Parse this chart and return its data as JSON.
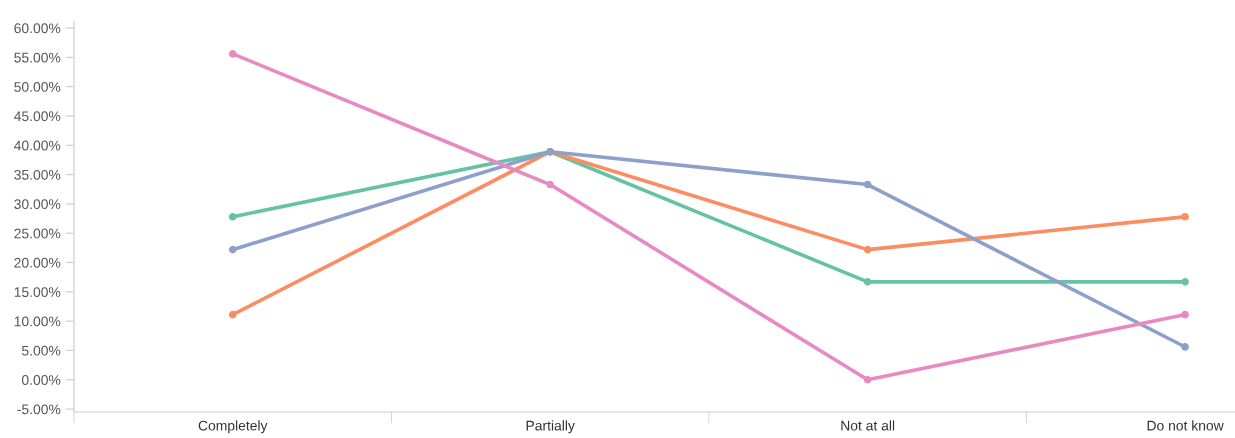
{
  "chart_data": {
    "type": "line",
    "categories": [
      "Completely",
      "Partially",
      "Not at all",
      "Do not know"
    ],
    "series": [
      {
        "color": "#66c2a5",
        "values": [
          27.8,
          38.9,
          16.7,
          16.7
        ]
      },
      {
        "color": "#fc8d62",
        "values": [
          11.1,
          38.9,
          22.2,
          27.8
        ]
      },
      {
        "color": "#8da0cb",
        "values": [
          22.2,
          38.9,
          33.3,
          5.6
        ]
      },
      {
        "color": "#e78ac3",
        "values": [
          55.6,
          33.3,
          0.0,
          11.1
        ]
      }
    ],
    "ylim": [
      -5.5,
      61.2
    ],
    "yticks": [
      {
        "value": -5,
        "label": "-5.00%"
      },
      {
        "value": 0,
        "label": "0.00%"
      },
      {
        "value": 5,
        "label": "5.00%"
      },
      {
        "value": 10,
        "label": "10.00%"
      },
      {
        "value": 15,
        "label": "15.00%"
      },
      {
        "value": 20,
        "label": "20.00%"
      },
      {
        "value": 25,
        "label": "25.00%"
      },
      {
        "value": 30,
        "label": "30.00%"
      },
      {
        "value": 35,
        "label": "35.00%"
      },
      {
        "value": 40,
        "label": "40.00%"
      },
      {
        "value": 45,
        "label": "45.00%"
      },
      {
        "value": 50,
        "label": "50.00%"
      },
      {
        "value": 55,
        "label": "55.00%"
      },
      {
        "value": 60,
        "label": "60.00%"
      }
    ],
    "grid": false,
    "marker": "circle",
    "line_style": "solid"
  }
}
